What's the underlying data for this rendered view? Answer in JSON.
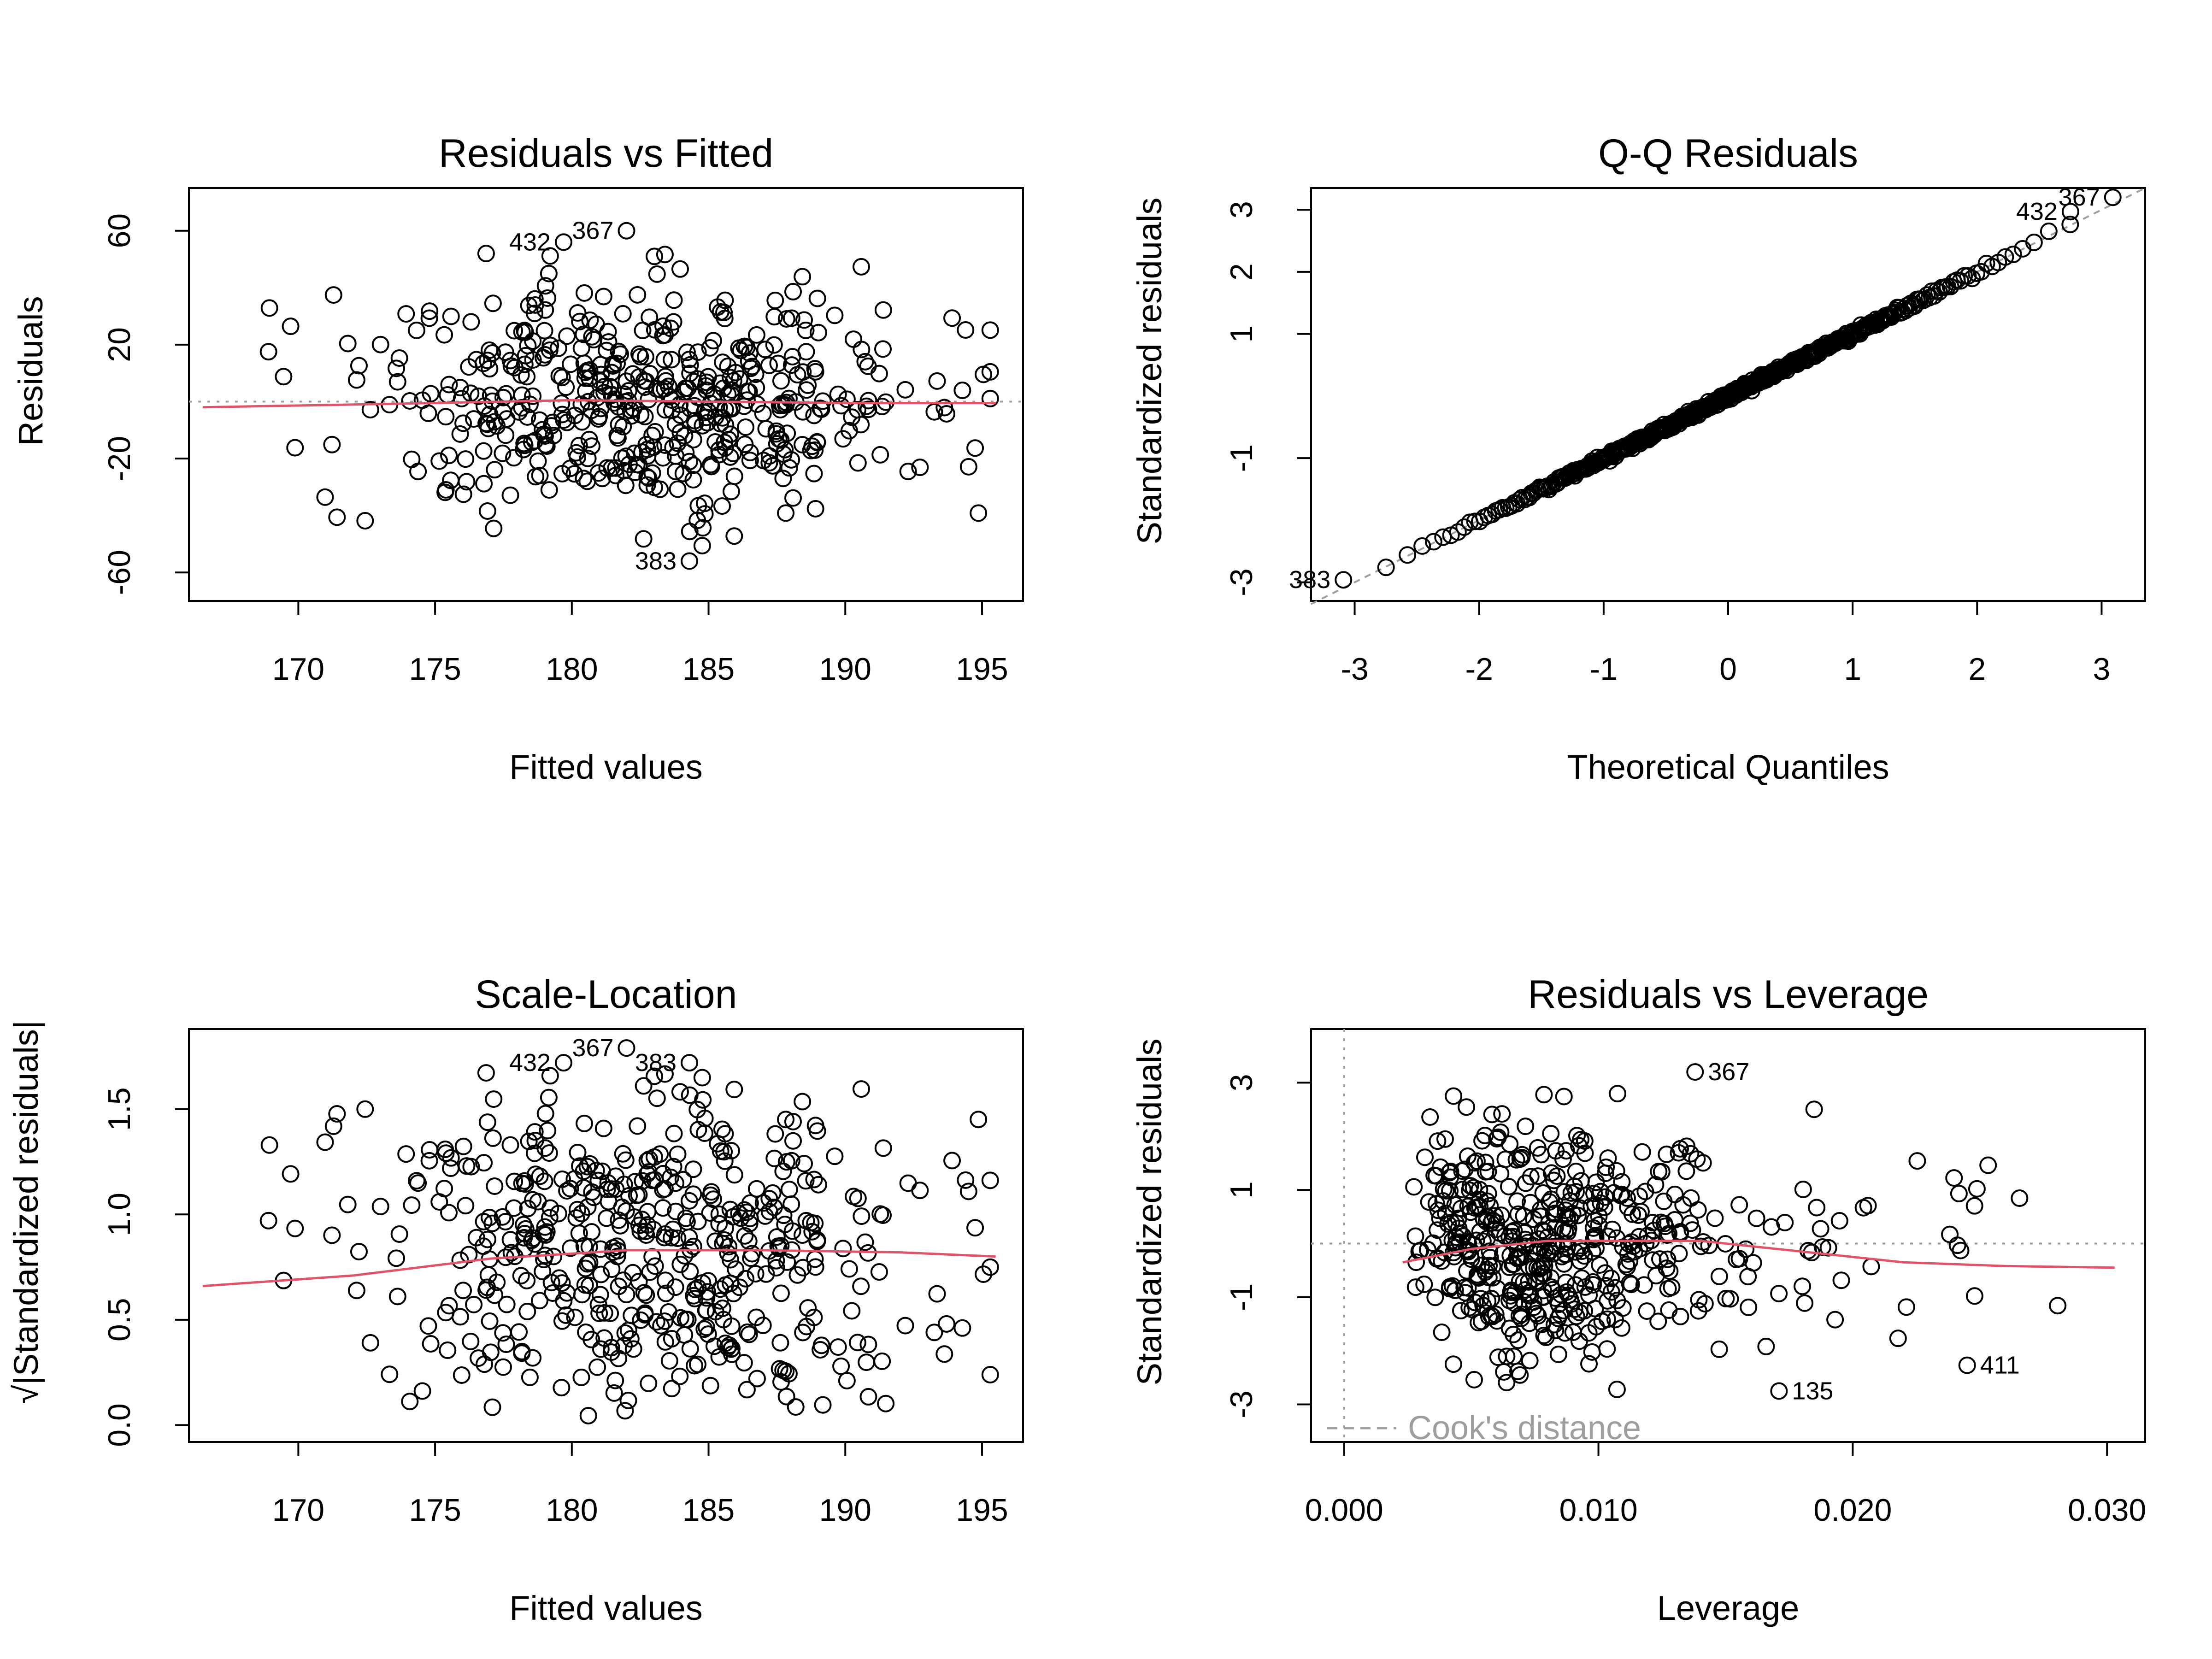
{
  "colors": {
    "points": "#000000",
    "smoother": "#DF536B",
    "reference": "#9E9E9E"
  },
  "chart_data": [
    {
      "type": "scatter",
      "title": "Residuals vs Fitted",
      "xlabel": "Fitted values",
      "ylabel": "Residuals",
      "xlim": [
        166,
        196.5
      ],
      "ylim": [
        -70,
        75
      ],
      "xticks": [
        "170",
        "175",
        "180",
        "185",
        "190",
        "195"
      ],
      "xtick_values": [
        170,
        175,
        180,
        185,
        190,
        195
      ],
      "yticks": [
        "-60",
        "-20",
        "20",
        "60"
      ],
      "ytick_values": [
        -60,
        -20,
        20,
        60
      ],
      "hline": 0,
      "smoother": [
        [
          166.5,
          -2
        ],
        [
          175,
          -0.5
        ],
        [
          180,
          0.5
        ],
        [
          185,
          0
        ],
        [
          190,
          -0.5
        ],
        [
          195.5,
          -0.5
        ]
      ],
      "labeled_points": [
        {
          "label": "367",
          "x": 182.0,
          "y": 60
        },
        {
          "label": "432",
          "x": 179.7,
          "y": 56
        },
        {
          "label": "383",
          "x": 184.3,
          "y": -56
        }
      ]
    },
    {
      "type": "scatter",
      "title": "Q-Q Residuals",
      "xlabel": "Theoretical Quantiles",
      "ylabel": "Standardized residuals",
      "xlim": [
        -3.35,
        3.35
      ],
      "ylim": [
        -3.3,
        3.35
      ],
      "xticks": [
        "-3",
        "-2",
        "-1",
        "0",
        "1",
        "2",
        "3"
      ],
      "xtick_values": [
        -3,
        -2,
        -1,
        0,
        1,
        2,
        3
      ],
      "yticks": [
        "-3",
        "-1",
        "1",
        "2",
        "3"
      ],
      "ytick_values": [
        -3,
        -1,
        1,
        2,
        3
      ],
      "reference_line": [
        [
          -3.35,
          -3.35
        ],
        [
          3.35,
          3.35
        ]
      ],
      "labeled_points": [
        {
          "label": "367",
          "x": 3.09,
          "y": 3.2
        },
        {
          "label": "432",
          "x": 2.75,
          "y": 2.97
        },
        {
          "label": "383",
          "x": -3.09,
          "y": -2.96
        }
      ]
    },
    {
      "type": "scatter",
      "title": "Scale-Location",
      "xlabel": "Fitted values",
      "ylabel": "√|Standardized residuals|",
      "xlim": [
        166,
        196.5
      ],
      "ylim": [
        -0.08,
        1.88
      ],
      "xticks": [
        "170",
        "175",
        "180",
        "185",
        "190",
        "195"
      ],
      "xtick_values": [
        170,
        175,
        180,
        185,
        190,
        195
      ],
      "yticks": [
        "0.0",
        "0.5",
        "1.0",
        "1.5"
      ],
      "ytick_values": [
        0.0,
        0.5,
        1.0,
        1.5
      ],
      "smoother": [
        [
          166.5,
          0.66
        ],
        [
          172,
          0.71
        ],
        [
          177,
          0.79
        ],
        [
          182,
          0.83
        ],
        [
          187,
          0.83
        ],
        [
          192,
          0.82
        ],
        [
          195.5,
          0.8
        ]
      ],
      "labeled_points": [
        {
          "label": "367",
          "x": 182.0,
          "y": 1.79
        },
        {
          "label": "432",
          "x": 179.7,
          "y": 1.72
        },
        {
          "label": "383",
          "x": 184.3,
          "y": 1.72
        }
      ]
    },
    {
      "type": "scatter",
      "title": "Residuals vs Leverage",
      "xlabel": "Leverage",
      "ylabel": "Standardized residuals",
      "xlim": [
        -0.0013,
        0.0315
      ],
      "ylim": [
        -3.7,
        4.0
      ],
      "xticks": [
        "0.000",
        "0.010",
        "0.020",
        "0.030"
      ],
      "xtick_values": [
        0.0,
        0.01,
        0.02,
        0.03
      ],
      "yticks": [
        "-3",
        "-1",
        "1",
        "3"
      ],
      "ytick_values": [
        -3,
        -1,
        1,
        3
      ],
      "hline": 0,
      "vline": 0,
      "smoother": [
        [
          0.0023,
          -0.35
        ],
        [
          0.005,
          -0.1
        ],
        [
          0.008,
          0.05
        ],
        [
          0.011,
          0.05
        ],
        [
          0.014,
          0.05
        ],
        [
          0.018,
          -0.15
        ],
        [
          0.022,
          -0.35
        ],
        [
          0.026,
          -0.42
        ],
        [
          0.0303,
          -0.45
        ]
      ],
      "legend": "Cook's distance",
      "labeled_points": [
        {
          "label": "367",
          "x": 0.0138,
          "y": 3.2
        },
        {
          "label": "135",
          "x": 0.0171,
          "y": -2.75
        },
        {
          "label": "411",
          "x": 0.0245,
          "y": -2.27
        }
      ]
    }
  ]
}
